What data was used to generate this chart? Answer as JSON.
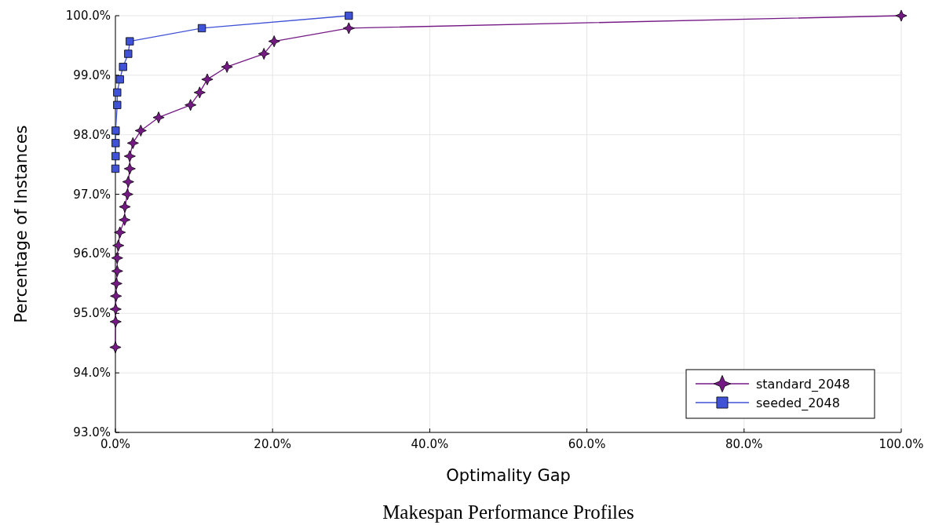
{
  "chart_data": {
    "type": "line",
    "title": "Makespan Performance Profiles",
    "xlabel": "Optimality Gap",
    "ylabel": "Percentage of Instances",
    "xlim": [
      0,
      100
    ],
    "ylim": [
      93,
      100
    ],
    "xticks": [
      {
        "value": 0,
        "label": "0.0%"
      },
      {
        "value": 20,
        "label": "20.0%"
      },
      {
        "value": 40,
        "label": "40.0%"
      },
      {
        "value": 60,
        "label": "60.0%"
      },
      {
        "value": 80,
        "label": "80.0%"
      },
      {
        "value": 100,
        "label": "100.0%"
      }
    ],
    "yticks": [
      {
        "value": 93,
        "label": "93.0%"
      },
      {
        "value": 94,
        "label": "94.0%"
      },
      {
        "value": 95,
        "label": "95.0%"
      },
      {
        "value": 96,
        "label": "96.0%"
      },
      {
        "value": 97,
        "label": "97.0%"
      },
      {
        "value": 98,
        "label": "98.0%"
      },
      {
        "value": 99,
        "label": "99.0%"
      },
      {
        "value": 100,
        "label": "100.0%"
      }
    ],
    "grid": true,
    "legend": "bottom right",
    "line_style": "solid",
    "series": [
      {
        "name": "standard_2048",
        "color": "#751a85",
        "marker": "star",
        "x": [
          0,
          0.03,
          0.03,
          0.07,
          0.13,
          0.23,
          0.23,
          0.37,
          0.57,
          1.17,
          1.2,
          1.53,
          1.63,
          1.83,
          1.83,
          2.23,
          3.23,
          5.5,
          9.56,
          10.72,
          11.69,
          14.2,
          18.9,
          20.2,
          29.7,
          100
        ],
        "values": [
          94.43,
          94.86,
          95.07,
          95.29,
          95.5,
          95.71,
          95.93,
          96.14,
          96.36,
          96.57,
          96.79,
          97.0,
          97.21,
          97.43,
          97.64,
          97.86,
          98.07,
          98.29,
          98.5,
          98.71,
          98.93,
          99.14,
          99.36,
          99.57,
          99.79,
          100
        ]
      },
      {
        "name": "seeded_2048",
        "color": "#4052d6",
        "marker": "square",
        "x": [
          0,
          0.03,
          0.03,
          0.03,
          0.23,
          0.23,
          0.57,
          0.97,
          1.63,
          1.83,
          11.0,
          29.7
        ],
        "values": [
          97.43,
          97.64,
          97.86,
          98.07,
          98.5,
          98.71,
          98.93,
          99.14,
          99.36,
          99.57,
          99.79,
          100
        ]
      }
    ]
  }
}
